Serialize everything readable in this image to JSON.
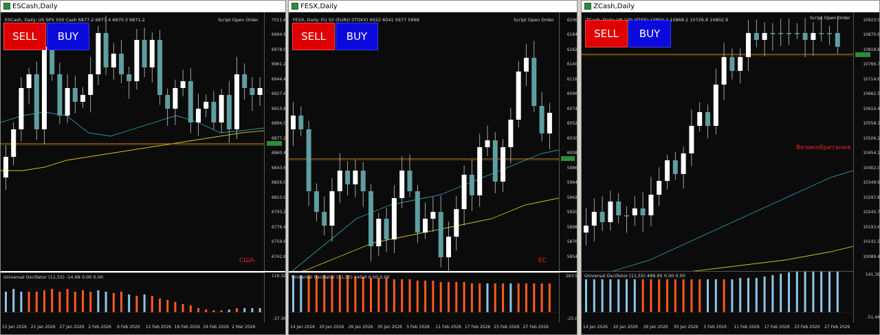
{
  "windows": [
    {
      "title": "ESCash,Daily",
      "info": "ESCash, Daily: US SPX 500 Cash 6877.2 6877.4 6870.3 6871.2",
      "script_label": "Script Open Order",
      "sell_label": "SELL",
      "buy_label": "BUY",
      "region_label": "США",
      "osc_label": "Universal Oscillator (11,55) -14.68 0.00 0.00",
      "price_axis": [
        "7011.6",
        "6994.9",
        "6978.0",
        "6961.2",
        "6944.4",
        "6927.6",
        "6910.8",
        "6894.0",
        "6877.2",
        "6860.4",
        "6843.6",
        "6826.0",
        "6810.0",
        "6793.2",
        "6776.4",
        "6759.6",
        "6742.8"
      ],
      "osc_axis": [
        "116.32",
        "-37.36"
      ],
      "dates": [
        "15 Jan 2026",
        "21 Jan 2026",
        "27 Jan 2026",
        "2 Feb 2026",
        "6 Feb 2026",
        "12 Feb 2026",
        "18 Feb 2026",
        "24 Feb 2026",
        "2 Mar 2026"
      ]
    },
    {
      "title": "FESX,Daily",
      "info": "FESX, Daily: EU 50 (EURO STOXX) 6022 6041 5977 5998",
      "script_label": "Script Open Order",
      "sell_label": "SELL",
      "buy_label": "BUY",
      "region_label": "ЕС",
      "osc_label": "Universal Oscillator (11,55) 145.0 0.00 0.00",
      "price_axis": [
        "6206",
        "6184",
        "6162",
        "6140",
        "6118",
        "6096",
        "6074",
        "6052",
        "6030",
        "6008",
        "5986",
        "5964",
        "5942",
        "5920",
        "5898",
        "5876",
        "5854"
      ],
      "osc_axis": [
        "263.5",
        "-25.0"
      ],
      "dates": [
        "14 Jan 2026",
        "20 Jan 2026",
        "26 Jan 2026",
        "30 Jan 2026",
        "5 Feb 2026",
        "11 Feb 2026",
        "17 Feb 2026",
        "23 Feb 2026",
        "27 Feb 2026"
      ]
    },
    {
      "title": "ZCash,Daily",
      "info": "ZCash, Daily: UK 100 (FTSE) 10850.4 10868.2 10726.8 10802.9",
      "script_label": "Script Open Order",
      "sell_label": "SELL",
      "buy_label": "BUY",
      "region_label": "Великобритания",
      "osc_label": "Universal Oscillator (11,55) 489.95 0.00 0.00",
      "price_axis": [
        "10923.0",
        "10870.9",
        "10818.8",
        "10766.7",
        "10714.6",
        "10662.5",
        "10610.4",
        "10558.3",
        "10506.2",
        "10454.1",
        "10402.0",
        "10349.9",
        "10297.8",
        "10245.7",
        "10193.6",
        "10141.5",
        "10089.4"
      ],
      "osc_axis": [
        "541.39",
        "-51.44"
      ],
      "dates": [
        "14 Jan 2026",
        "20 Jan 2026",
        "26 Jan 2026",
        "30 Jan 2026",
        "5 Feb 2026",
        "11 Feb 2026",
        "17 Feb 2026",
        "23 Feb 2026",
        "27 Feb 2026"
      ]
    }
  ],
  "colors": {
    "background": "#0b0b0b",
    "bull_candle": "#ffffff",
    "bear_candle": "#5f9ea0",
    "osc_pos": "#8ec6e8",
    "osc_neg": "#ff5a1e",
    "level_line": "#c8801c",
    "fast_ma": "#2aa0b0",
    "slow_ma": "#c8c81c",
    "sell": "#e00000",
    "buy": "#0a0adc",
    "region": "#e0281e"
  }
}
